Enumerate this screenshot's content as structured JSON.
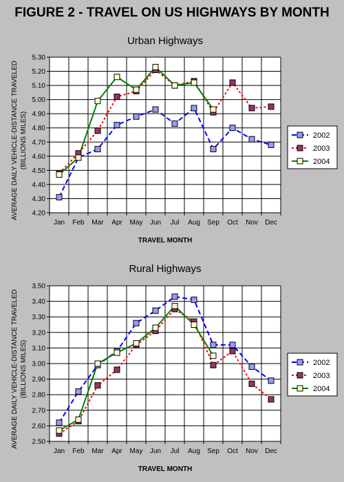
{
  "figure_title": "FIGURE 2 - TRAVEL ON US HIGHWAYS BY MONTH",
  "colors": {
    "2002": "#0000ff",
    "2003": "#ff0000",
    "2004": "#008000"
  },
  "marker_colors": {
    "2002": "#9999ff",
    "2003": "#993366",
    "2004": "#ffffcc"
  },
  "chart_data": [
    {
      "type": "line",
      "title": "Urban Highways",
      "xlabel": "TRAVEL MONTH",
      "ylabel": "AVERAGE DAILY VEHICLE-DISTANCE TRAVELED",
      "ylabel2": "(BILLIONS MILES)",
      "categories": [
        "Jan",
        "Feb",
        "Mar",
        "Apr",
        "May",
        "Jun",
        "Jul",
        "Aug",
        "Sep",
        "Oct",
        "Nov",
        "Dec"
      ],
      "ylim": [
        4.2,
        5.3
      ],
      "ystep": 0.1,
      "yticks": [
        "4.20",
        "4.30",
        "4.40",
        "4.50",
        "4.60",
        "4.70",
        "4.80",
        "4.90",
        "5.00",
        "5.10",
        "5.20",
        "5.30"
      ],
      "grid": true,
      "legend": "right",
      "series": [
        {
          "name": "2002",
          "values": [
            4.31,
            4.59,
            4.65,
            4.82,
            4.88,
            4.93,
            4.83,
            4.94,
            4.65,
            4.8,
            4.72,
            4.68
          ]
        },
        {
          "name": "2003",
          "values": [
            4.48,
            4.62,
            4.78,
            5.02,
            5.06,
            5.21,
            5.1,
            5.13,
            4.91,
            5.12,
            4.94,
            4.95
          ]
        },
        {
          "name": "2004",
          "values": [
            4.47,
            4.59,
            4.99,
            5.16,
            5.07,
            5.23,
            5.1,
            5.12,
            4.93,
            null,
            null,
            null
          ]
        }
      ]
    },
    {
      "type": "line",
      "title": "Rural Highways",
      "xlabel": "TRAVEL MONTH",
      "ylabel": "AVERAGE DAILY VEHICLE-DISTANCE TRAVELED",
      "ylabel2": "(BILLIONS MILES)",
      "categories": [
        "Jan",
        "Feb",
        "Mar",
        "Apr",
        "May",
        "Jun",
        "Jul",
        "Aug",
        "Sep",
        "Oct",
        "Nov",
        "Dec"
      ],
      "ylim": [
        2.5,
        3.5
      ],
      "ystep": 0.1,
      "yticks": [
        "2.50",
        "2.60",
        "2.70",
        "2.80",
        "2.90",
        "3.00",
        "3.10",
        "3.20",
        "3.30",
        "3.40",
        "3.50"
      ],
      "grid": true,
      "legend": "right",
      "series": [
        {
          "name": "2002",
          "values": [
            2.62,
            2.82,
            2.99,
            3.08,
            3.26,
            3.34,
            3.43,
            3.41,
            3.12,
            3.12,
            2.98,
            2.89
          ]
        },
        {
          "name": "2003",
          "values": [
            2.55,
            2.63,
            2.86,
            2.96,
            3.12,
            3.21,
            3.35,
            3.27,
            2.99,
            3.08,
            2.87,
            2.77
          ]
        },
        {
          "name": "2004",
          "values": [
            2.57,
            2.64,
            3.0,
            3.07,
            3.13,
            3.23,
            3.37,
            3.25,
            3.05,
            null,
            null,
            null
          ]
        }
      ]
    }
  ]
}
